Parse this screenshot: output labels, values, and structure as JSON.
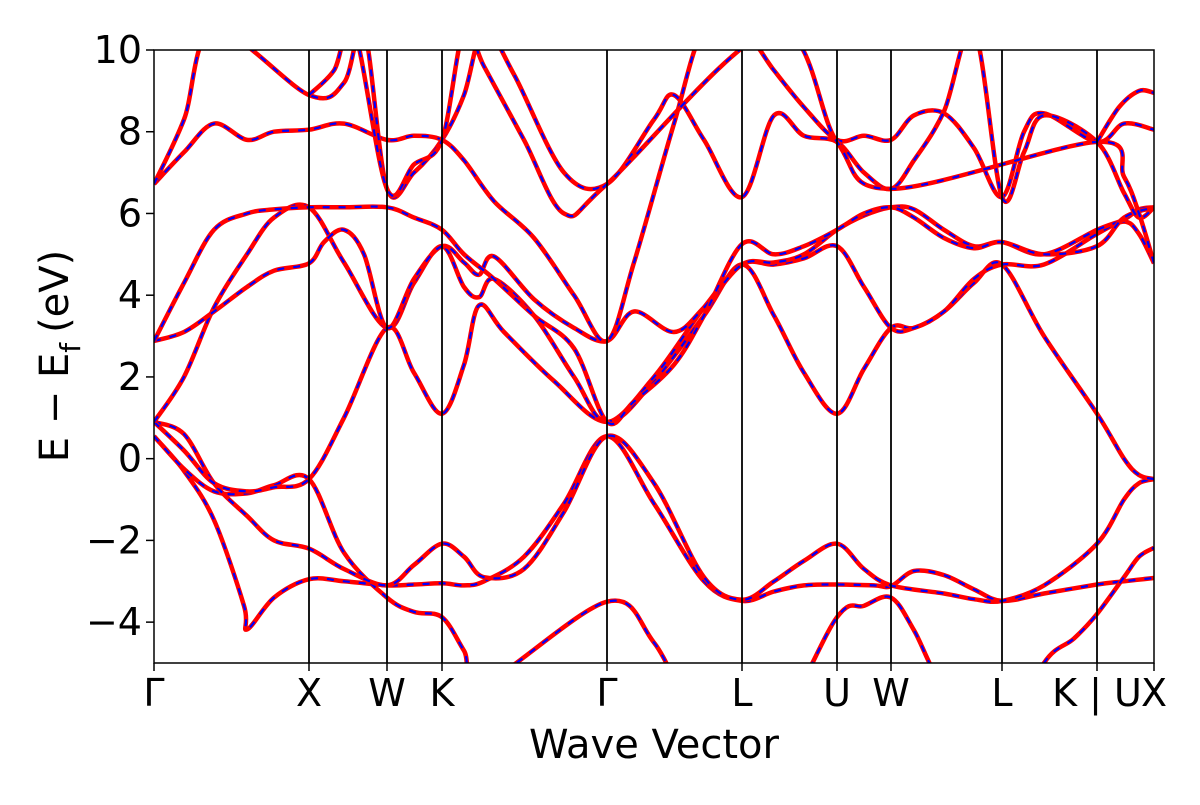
{
  "chart_data": {
    "type": "line",
    "title": "",
    "xlabel": "Wave Vector",
    "ylabel_main": "E − E",
    "ylabel_sub": "f",
    "ylabel_unit": "(eV)",
    "ylim": [
      -5,
      10
    ],
    "y_ticks": [
      -4,
      -2,
      0,
      2,
      4,
      6,
      8,
      10
    ],
    "y_tick_labels": [
      "−4",
      "−2",
      "0",
      "2",
      "4",
      "6",
      "8",
      "10"
    ],
    "x_range": [
      0,
      1
    ],
    "kpoints": [
      {
        "label": "Γ",
        "x": 0.0
      },
      {
        "label": "X",
        "x": 0.155
      },
      {
        "label": "W",
        "x": 0.233
      },
      {
        "label": "K",
        "x": 0.288
      },
      {
        "label": "Γ",
        "x": 0.453
      },
      {
        "label": "L",
        "x": 0.588
      },
      {
        "label": "U",
        "x": 0.683
      },
      {
        "label": "W",
        "x": 0.737
      },
      {
        "label": "L",
        "x": 0.848
      },
      {
        "label": "K | U",
        "x": 0.943
      },
      {
        "label": "X",
        "x": 1.0
      }
    ],
    "series_style": [
      {
        "color": "#ff0000",
        "style": "solid"
      },
      {
        "color": "#0000ff",
        "style": "dashed"
      }
    ],
    "bands": [
      [
        [
          0.0,
          0.55
        ],
        [
          0.03,
          -0.3
        ],
        [
          0.06,
          -1.5
        ],
        [
          0.09,
          -3.6
        ],
        [
          0.093,
          -4.18
        ],
        [
          0.12,
          -3.4
        ],
        [
          0.155,
          -2.95
        ],
        [
          0.19,
          -3.0
        ],
        [
          0.233,
          -3.1
        ],
        [
          0.26,
          -3.08
        ],
        [
          0.288,
          -3.05
        ],
        [
          0.31,
          -3.1
        ],
        [
          0.33,
          -3.0
        ],
        [
          0.37,
          -2.4
        ],
        [
          0.41,
          -1.1
        ],
        [
          0.453,
          0.55
        ],
        [
          0.5,
          -1.1
        ],
        [
          0.55,
          -3.0
        ],
        [
          0.588,
          -3.48
        ],
        [
          0.62,
          -3.25
        ],
        [
          0.65,
          -3.1
        ],
        [
          0.683,
          -3.08
        ],
        [
          0.72,
          -3.1
        ],
        [
          0.737,
          -3.12
        ],
        [
          0.76,
          -2.75
        ],
        [
          0.79,
          -2.85
        ],
        [
          0.82,
          -3.2
        ],
        [
          0.848,
          -3.48
        ],
        [
          0.89,
          -3.3
        ],
        [
          0.943,
          -3.08
        ],
        [
          0.97,
          -3.0
        ],
        [
          1.0,
          -2.92
        ]
      ],
      [
        [
          0.0,
          0.55
        ],
        [
          0.03,
          -0.25
        ],
        [
          0.06,
          -0.8
        ],
        [
          0.093,
          -0.85
        ],
        [
          0.12,
          -0.65
        ],
        [
          0.155,
          -0.5
        ],
        [
          0.19,
          -2.3
        ],
        [
          0.233,
          -3.4
        ],
        [
          0.26,
          -3.75
        ],
        [
          0.288,
          -3.88
        ],
        [
          0.31,
          -4.7
        ],
        [
          0.33,
          -5.5
        ],
        [
          0.453,
          -3.5
        ],
        [
          0.5,
          -4.5
        ],
        [
          0.55,
          -6.5
        ],
        [
          0.62,
          -6.5
        ],
        [
          0.683,
          -3.88
        ],
        [
          0.71,
          -3.6
        ],
        [
          0.737,
          -3.4
        ],
        [
          0.76,
          -4.2
        ],
        [
          0.79,
          -5.6
        ],
        [
          0.848,
          -7.0
        ],
        [
          0.89,
          -5.0
        ],
        [
          0.92,
          -4.4
        ],
        [
          0.943,
          -3.8
        ],
        [
          0.97,
          -2.9
        ],
        [
          0.985,
          -2.4
        ],
        [
          1.0,
          -2.18
        ]
      ],
      [
        [
          0.0,
          0.9
        ],
        [
          0.03,
          0.6
        ],
        [
          0.06,
          -0.6
        ],
        [
          0.093,
          -1.4
        ],
        [
          0.12,
          -2.0
        ],
        [
          0.155,
          -2.2
        ],
        [
          0.19,
          -2.7
        ],
        [
          0.233,
          -3.1
        ],
        [
          0.26,
          -2.6
        ],
        [
          0.288,
          -2.08
        ],
        [
          0.31,
          -2.4
        ],
        [
          0.33,
          -2.9
        ],
        [
          0.37,
          -2.7
        ],
        [
          0.41,
          -1.3
        ],
        [
          0.453,
          0.55
        ],
        [
          0.5,
          -0.6
        ],
        [
          0.55,
          -2.9
        ],
        [
          0.588,
          -3.45
        ],
        [
          0.62,
          -3.0
        ],
        [
          0.65,
          -2.5
        ],
        [
          0.683,
          -2.08
        ],
        [
          0.71,
          -2.7
        ],
        [
          0.737,
          -3.1
        ],
        [
          0.79,
          -3.3
        ],
        [
          0.82,
          -3.44
        ],
        [
          0.848,
          -3.48
        ],
        [
          0.89,
          -3.1
        ],
        [
          0.943,
          -2.08
        ],
        [
          0.97,
          -1.0
        ],
        [
          0.985,
          -0.6
        ],
        [
          1.0,
          -0.5
        ]
      ],
      [
        [
          0.0,
          0.9
        ],
        [
          0.03,
          0.2
        ],
        [
          0.06,
          -0.6
        ],
        [
          0.093,
          -0.8
        ],
        [
          0.12,
          -0.7
        ],
        [
          0.155,
          -0.5
        ],
        [
          0.19,
          1.0
        ],
        [
          0.233,
          3.2
        ],
        [
          0.26,
          2.1
        ],
        [
          0.288,
          1.1
        ],
        [
          0.31,
          2.3
        ],
        [
          0.325,
          3.75
        ],
        [
          0.35,
          3.1
        ],
        [
          0.4,
          1.9
        ],
        [
          0.453,
          0.9
        ],
        [
          0.5,
          1.9
        ],
        [
          0.55,
          3.5
        ],
        [
          0.588,
          4.75
        ],
        [
          0.62,
          3.5
        ],
        [
          0.65,
          2.1
        ],
        [
          0.683,
          1.1
        ],
        [
          0.71,
          2.2
        ],
        [
          0.737,
          3.2
        ],
        [
          0.76,
          3.2
        ],
        [
          0.79,
          3.6
        ],
        [
          0.82,
          4.3
        ],
        [
          0.848,
          4.75
        ],
        [
          0.89,
          3.0
        ],
        [
          0.943,
          1.1
        ],
        [
          0.97,
          0.0
        ],
        [
          0.985,
          -0.4
        ],
        [
          1.0,
          -0.5
        ]
      ],
      [
        [
          0.0,
          0.9
        ],
        [
          0.03,
          2.0
        ],
        [
          0.06,
          3.7
        ],
        [
          0.093,
          5.0
        ],
        [
          0.12,
          5.9
        ],
        [
          0.155,
          6.15
        ],
        [
          0.19,
          4.8
        ],
        [
          0.233,
          3.2
        ],
        [
          0.26,
          4.3
        ],
        [
          0.288,
          5.2
        ],
        [
          0.31,
          4.2
        ],
        [
          0.325,
          3.95
        ],
        [
          0.34,
          4.4
        ],
        [
          0.38,
          3.5
        ],
        [
          0.42,
          2.0
        ],
        [
          0.453,
          0.9
        ],
        [
          0.5,
          2.0
        ],
        [
          0.55,
          3.7
        ],
        [
          0.588,
          4.75
        ],
        [
          0.62,
          4.75
        ],
        [
          0.65,
          4.9
        ],
        [
          0.683,
          5.2
        ],
        [
          0.71,
          4.2
        ],
        [
          0.737,
          3.2
        ],
        [
          0.76,
          3.2
        ],
        [
          0.79,
          3.6
        ],
        [
          0.82,
          4.4
        ],
        [
          0.848,
          4.75
        ],
        [
          0.89,
          4.75
        ],
        [
          0.943,
          5.5
        ],
        [
          0.97,
          5.8
        ],
        [
          0.985,
          5.5
        ],
        [
          1.0,
          4.78
        ]
      ],
      [
        [
          0.0,
          2.88
        ],
        [
          0.03,
          3.1
        ],
        [
          0.06,
          3.6
        ],
        [
          0.093,
          4.2
        ],
        [
          0.12,
          4.6
        ],
        [
          0.155,
          4.78
        ],
        [
          0.17,
          5.3
        ],
        [
          0.19,
          5.6
        ],
        [
          0.21,
          5.0
        ],
        [
          0.233,
          3.2
        ],
        [
          0.26,
          4.4
        ],
        [
          0.288,
          5.2
        ],
        [
          0.31,
          4.8
        ],
        [
          0.325,
          4.5
        ],
        [
          0.34,
          4.95
        ],
        [
          0.38,
          3.9
        ],
        [
          0.42,
          3.2
        ],
        [
          0.453,
          2.88
        ],
        [
          0.48,
          3.6
        ],
        [
          0.52,
          3.1
        ],
        [
          0.55,
          3.7
        ],
        [
          0.588,
          4.75
        ],
        [
          0.62,
          4.8
        ],
        [
          0.65,
          5.0
        ],
        [
          0.683,
          5.6
        ],
        [
          0.71,
          5.95
        ],
        [
          0.737,
          6.15
        ],
        [
          0.76,
          6.1
        ],
        [
          0.79,
          5.6
        ],
        [
          0.82,
          5.2
        ],
        [
          0.848,
          5.3
        ],
        [
          0.89,
          5.0
        ],
        [
          0.943,
          5.6
        ],
        [
          0.97,
          5.85
        ],
        [
          0.985,
          6.1
        ],
        [
          1.0,
          6.15
        ]
      ],
      [
        [
          0.0,
          2.88
        ],
        [
          0.03,
          4.3
        ],
        [
          0.06,
          5.6
        ],
        [
          0.093,
          6.0
        ],
        [
          0.12,
          6.1
        ],
        [
          0.155,
          6.15
        ],
        [
          0.19,
          6.15
        ],
        [
          0.233,
          6.15
        ],
        [
          0.26,
          5.9
        ],
        [
          0.288,
          5.6
        ],
        [
          0.31,
          5.0
        ],
        [
          0.34,
          4.4
        ],
        [
          0.38,
          3.5
        ],
        [
          0.42,
          2.7
        ],
        [
          0.453,
          0.9
        ],
        [
          0.48,
          1.4
        ],
        [
          0.52,
          2.3
        ],
        [
          0.55,
          3.5
        ],
        [
          0.588,
          5.25
        ],
        [
          0.62,
          5.0
        ],
        [
          0.65,
          5.2
        ],
        [
          0.683,
          5.6
        ],
        [
          0.71,
          6.0
        ],
        [
          0.737,
          6.15
        ],
        [
          0.76,
          5.9
        ],
        [
          0.79,
          5.4
        ],
        [
          0.82,
          5.15
        ],
        [
          0.848,
          5.3
        ],
        [
          0.89,
          5.0
        ],
        [
          0.943,
          5.2
        ],
        [
          0.97,
          5.9
        ],
        [
          1.0,
          6.15
        ]
      ],
      [
        [
          0.0,
          6.72
        ],
        [
          0.03,
          7.5
        ],
        [
          0.06,
          8.2
        ],
        [
          0.093,
          7.8
        ],
        [
          0.12,
          8.0
        ],
        [
          0.155,
          8.05
        ],
        [
          0.19,
          8.2
        ],
        [
          0.233,
          7.8
        ],
        [
          0.26,
          7.9
        ],
        [
          0.288,
          7.8
        ],
        [
          0.31,
          7.3
        ],
        [
          0.34,
          6.3
        ],
        [
          0.38,
          5.4
        ],
        [
          0.42,
          4.0
        ],
        [
          0.453,
          2.88
        ],
        [
          0.48,
          4.8
        ],
        [
          0.52,
          8.2
        ],
        [
          0.55,
          10.5
        ],
        [
          0.588,
          10.5
        ],
        [
          0.62,
          9.5
        ],
        [
          0.65,
          8.6
        ],
        [
          0.683,
          7.8
        ],
        [
          0.71,
          7.9
        ],
        [
          0.737,
          7.8
        ],
        [
          0.76,
          8.4
        ],
        [
          0.79,
          8.45
        ],
        [
          0.82,
          7.6
        ],
        [
          0.848,
          6.4
        ],
        [
          0.87,
          8.0
        ],
        [
          0.89,
          8.45
        ],
        [
          0.943,
          7.75
        ],
        [
          0.97,
          8.2
        ],
        [
          1.0,
          8.05
        ]
      ],
      [
        [
          0.0,
          6.72
        ],
        [
          0.03,
          8.3
        ],
        [
          0.06,
          10.5
        ],
        [
          0.155,
          8.9
        ],
        [
          0.19,
          9.2
        ],
        [
          0.21,
          10.5
        ],
        [
          0.233,
          6.6
        ],
        [
          0.26,
          7.0
        ],
        [
          0.288,
          7.8
        ],
        [
          0.31,
          8.9
        ],
        [
          0.33,
          10.5
        ],
        [
          0.36,
          9.4
        ],
        [
          0.41,
          7.0
        ],
        [
          0.453,
          6.72
        ],
        [
          0.5,
          8.3
        ],
        [
          0.52,
          8.9
        ],
        [
          0.55,
          7.8
        ],
        [
          0.588,
          6.4
        ],
        [
          0.62,
          8.4
        ],
        [
          0.65,
          7.9
        ],
        [
          0.683,
          7.75
        ],
        [
          0.71,
          7.0
        ],
        [
          0.737,
          6.6
        ],
        [
          0.76,
          7.3
        ],
        [
          0.79,
          8.5
        ],
        [
          0.82,
          10.5
        ],
        [
          0.848,
          6.4
        ],
        [
          0.87,
          7.5
        ],
        [
          0.89,
          8.4
        ],
        [
          0.943,
          7.75
        ],
        [
          0.97,
          6.5
        ],
        [
          0.985,
          5.9
        ],
        [
          1.0,
          6.15
        ]
      ],
      [
        [
          0.155,
          8.9
        ],
        [
          0.18,
          9.5
        ],
        [
          0.2,
          10.5
        ],
        [
          0.233,
          6.6
        ],
        [
          0.26,
          7.2
        ],
        [
          0.288,
          7.8
        ],
        [
          0.31,
          10.5
        ],
        [
          0.33,
          9.6
        ],
        [
          0.37,
          7.8
        ],
        [
          0.41,
          6.0
        ],
        [
          0.453,
          6.72
        ],
        [
          0.62,
          10.5
        ],
        [
          0.683,
          7.75
        ],
        [
          0.737,
          6.6
        ],
        [
          0.943,
          7.75
        ],
        [
          0.97,
          6.9
        ],
        [
          0.985,
          6.0
        ],
        [
          1.0,
          4.78
        ]
      ],
      [
        [
          0.943,
          7.75
        ],
        [
          0.965,
          8.6
        ],
        [
          0.985,
          9.0
        ],
        [
          1.0,
          8.95
        ]
      ]
    ]
  }
}
